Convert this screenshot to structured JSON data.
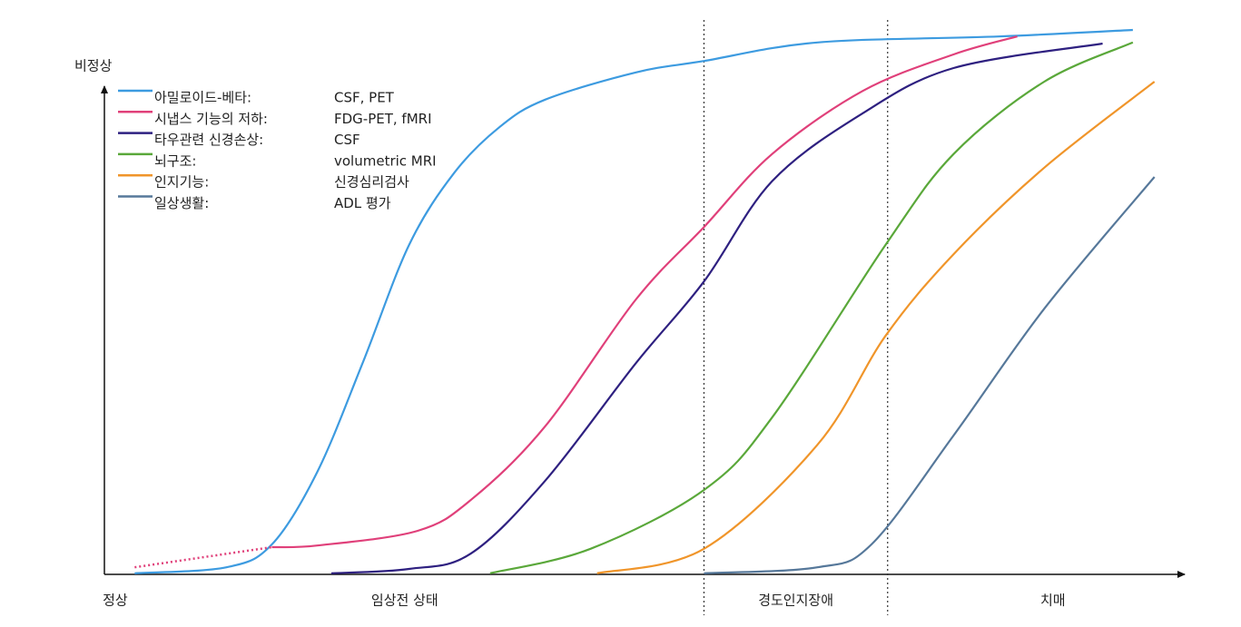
{
  "chart_data": {
    "type": "line",
    "ylabel": "비정상",
    "xlim": [
      0,
      100
    ],
    "ylim": [
      0,
      100
    ],
    "xticks": [
      {
        "value": 1,
        "label": "정상"
      },
      {
        "value": 27.8,
        "label": "임상전 상태"
      },
      {
        "value": 64,
        "label": "경도인지장애"
      },
      {
        "value": 87.8,
        "label": "치매"
      }
    ],
    "dividers": [
      55.5,
      72.5
    ],
    "series": [
      {
        "name": "아밀로이드-베타:",
        "method": "CSF, PET",
        "color": "#3d9be0",
        "x": [
          2.8,
          11.3,
          15.5,
          19.7,
          23.9,
          28.2,
          32.4,
          36.6,
          40.8,
          49.2,
          55.5,
          66,
          82.8,
          95.2
        ],
        "values": [
          0.2,
          1.3,
          5.5,
          18.8,
          38.8,
          60.5,
          73.8,
          82.2,
          87.2,
          92.2,
          94.3,
          97.7,
          98.8,
          100
        ]
      },
      {
        "name": "시냅스 기능의 저하:",
        "method": "FDG-PET, fMRI",
        "color": "#e0407a",
        "dotted_first_segment": true,
        "x": [
          2.8,
          15.5,
          19.7,
          29,
          34,
          40.8,
          49.2,
          55.5,
          61.8,
          70.2,
          78.6,
          84.5
        ],
        "values": [
          1.3,
          5,
          5.3,
          8,
          13.8,
          27.2,
          50.5,
          63.8,
          77.2,
          88.8,
          95.5,
          98.8
        ]
      },
      {
        "name": "타우관련 신경손상:",
        "method": "CSF",
        "color": "#2e2080",
        "x": [
          21,
          28.2,
          33.9,
          40.8,
          49.2,
          55.5,
          61.8,
          70.2,
          78.6,
          92.4
        ],
        "values": [
          0.2,
          1,
          3.8,
          17.2,
          38.8,
          53.8,
          72.2,
          84.7,
          93,
          97.5
        ]
      },
      {
        "name": "뇌구조:",
        "method": "volumetric MRI",
        "color": "#5aa83a",
        "x": [
          35.7,
          45,
          55.5,
          61.8,
          72.3,
          78.6,
          87,
          95.2
        ],
        "values": [
          0.2,
          4.7,
          15.5,
          28.8,
          60.5,
          77.2,
          90.5,
          97.7
        ]
      },
      {
        "name": "인지기능:",
        "method": "신경심리검사",
        "color": "#f0952a",
        "x": [
          45.6,
          55.5,
          66,
          72.3,
          78.6,
          87,
          97.2
        ],
        "values": [
          0.2,
          4.7,
          23.8,
          43.8,
          58.8,
          74.7,
          90.5
        ]
      },
      {
        "name": "일상생활:",
        "method": "ADL 평가",
        "color": "#56789a",
        "x": [
          55.5,
          66,
          71,
          78.6,
          87,
          97.2
        ],
        "values": [
          0.2,
          1.3,
          5.5,
          25.5,
          48.8,
          73
        ]
      }
    ]
  }
}
